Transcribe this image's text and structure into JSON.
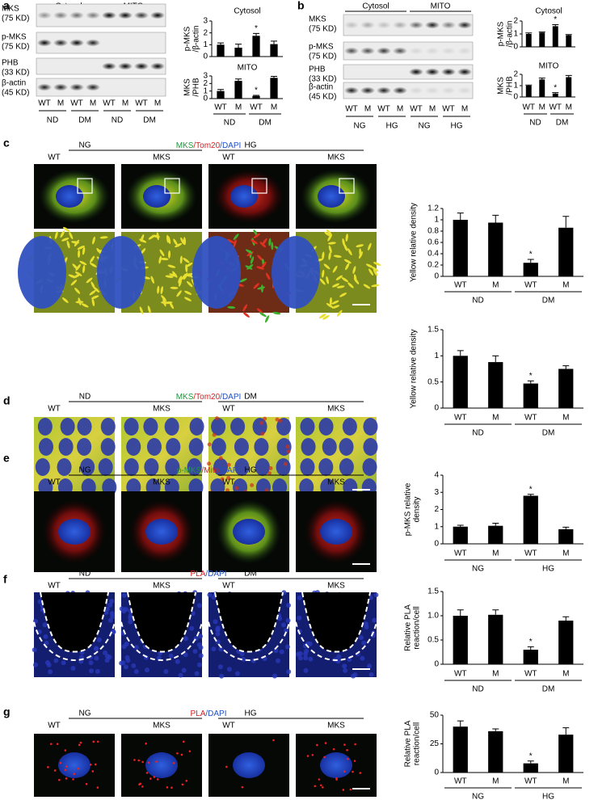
{
  "panels": {
    "a": {
      "label": "a",
      "fractions": [
        "Cytosol",
        "MITO"
      ],
      "rows": [
        [
          "MKS",
          "(75 KD)"
        ],
        [
          "p-MKS",
          "(75 KD)"
        ],
        [
          "PHB",
          "(33 KD)"
        ],
        [
          "β-actin",
          "(45 KD)"
        ]
      ],
      "lanes": [
        "WT",
        "M",
        "WT",
        "M",
        "WT",
        "M",
        "WT",
        "M"
      ],
      "groups": [
        "ND",
        "DM",
        "ND",
        "DM"
      ]
    },
    "b": {
      "label": "b",
      "fractions": [
        "Cytosol",
        "MITO"
      ],
      "rows": [
        [
          "MKS",
          "(75 KD)"
        ],
        [
          "p-MKS",
          "(75 KD)"
        ],
        [
          "PHB",
          "(33 KD)"
        ],
        [
          "β-actin",
          "(45 KD)"
        ]
      ],
      "lanes": [
        "WT",
        "M",
        "WT",
        "M",
        "WT",
        "M",
        "WT",
        "M"
      ],
      "groups": [
        "NG",
        "HG",
        "NG",
        "HG"
      ]
    },
    "c": {
      "label": "c",
      "conditions": [
        "NG",
        "HG"
      ],
      "stain": [
        {
          "text": "MKS",
          "color": "#1a9a3a"
        },
        {
          "text": "/Tom20",
          "color": "#d42020"
        },
        {
          "text": "/DAPI",
          "color": "#2050c0"
        }
      ],
      "columns": [
        "WT",
        "MKS",
        "WT",
        "MKS"
      ]
    },
    "d": {
      "label": "d",
      "conditions": [
        "ND",
        "DM"
      ],
      "stain": [
        {
          "text": "MKS",
          "color": "#1a9a3a"
        },
        {
          "text": "/Tom20",
          "color": "#d42020"
        },
        {
          "text": "/DAPI",
          "color": "#2050c0"
        }
      ],
      "columns": [
        "WT",
        "MKS",
        "WT",
        "MKS"
      ]
    },
    "e": {
      "label": "e",
      "conditions": [
        "NG",
        "HG"
      ],
      "stain": [
        {
          "text": "p-MKS",
          "color": "#1a9a3a"
        },
        {
          "text": "/Mito",
          "color": "#d42020"
        },
        {
          "text": "/DAPI",
          "color": "#2050c0"
        }
      ],
      "columns": [
        "WT",
        "MKS",
        "WT",
        "MKS"
      ]
    },
    "f": {
      "label": "f",
      "conditions": [
        "ND",
        "DM"
      ],
      "stain": [
        {
          "text": "PLA",
          "color": "#d42020"
        },
        {
          "text": "/DAPI",
          "color": "#2050c0"
        }
      ],
      "columns": [
        "WT",
        "MKS",
        "WT",
        "MKS"
      ]
    },
    "g": {
      "label": "g",
      "conditions": [
        "NG",
        "HG"
      ],
      "stain": [
        {
          "text": "PLA",
          "color": "#d42020"
        },
        {
          "text": "/DAPI",
          "color": "#2050c0"
        }
      ],
      "columns": [
        "WT",
        "MKS",
        "WT",
        "MKS"
      ]
    }
  },
  "chart_data": [
    {
      "type": "bar",
      "title": "Cytosol",
      "ylabel": [
        "p-MKS",
        "/β-actin"
      ],
      "values": [
        1.0,
        0.75,
        1.75,
        1.05
      ],
      "errors": [
        0.15,
        0.3,
        0.2,
        0.25
      ],
      "annotations": [
        {
          "text": "*",
          "category": 2
        }
      ],
      "ylim": [
        0,
        3
      ],
      "yticks": [
        0,
        1,
        2,
        3
      ],
      "color": "#000000"
    },
    {
      "type": "bar",
      "title": "MITO",
      "ylabel": [
        "MKS",
        "/PHB"
      ],
      "categories": [
        "WT",
        "M",
        "WT",
        "M"
      ],
      "groups": [
        "ND",
        "DM"
      ],
      "values": [
        1.0,
        2.35,
        0.35,
        2.75
      ],
      "errors": [
        0.2,
        0.25,
        0.08,
        0.2
      ],
      "annotations": [
        {
          "text": "*",
          "category": 2
        }
      ],
      "ylim": [
        0,
        3
      ],
      "yticks": [
        0,
        1,
        2,
        3
      ],
      "color": "#000000"
    },
    {
      "type": "bar",
      "title": "Cytosol",
      "ylabel": [
        "p-MKS",
        "/β-actin"
      ],
      "values": [
        1.0,
        1.1,
        1.6,
        0.9
      ],
      "errors": [
        0.08,
        0.05,
        0.12,
        0.05
      ],
      "annotations": [
        {
          "text": "*",
          "category": 2
        }
      ],
      "ylim": [
        0,
        2
      ],
      "yticks": [
        0,
        1,
        2
      ],
      "color": "#000000"
    },
    {
      "type": "bar",
      "title": "MITO",
      "ylabel": [
        "MKS",
        "/PHB"
      ],
      "categories": [
        "WT",
        "M",
        "WT",
        "M"
      ],
      "groups": [
        "ND",
        "DM"
      ],
      "values": [
        1.0,
        1.55,
        0.3,
        1.75
      ],
      "errors": [
        0.05,
        0.12,
        0.08,
        0.15
      ],
      "annotations": [
        {
          "text": "*",
          "category": 2
        }
      ],
      "ylim": [
        0,
        2
      ],
      "yticks": [
        0,
        1,
        2
      ],
      "color": "#000000"
    },
    {
      "type": "bar",
      "ylabel": [
        "Yellow relative density"
      ],
      "categories": [
        "WT",
        "M",
        "WT",
        "M"
      ],
      "groups": [
        "ND",
        "DM"
      ],
      "values": [
        1.0,
        0.95,
        0.24,
        0.86
      ],
      "errors": [
        0.12,
        0.13,
        0.06,
        0.2
      ],
      "annotations": [
        {
          "text": "*",
          "category": 2
        }
      ],
      "ylim": [
        0,
        1.2
      ],
      "yticks": [
        0,
        0.2,
        0.4,
        0.6,
        0.8,
        1,
        1.2
      ],
      "color": "#000000"
    },
    {
      "type": "bar",
      "ylabel": [
        "Yellow relative density"
      ],
      "categories": [
        "WT",
        "M",
        "WT",
        "M"
      ],
      "groups": [
        "ND",
        "DM"
      ],
      "values": [
        1.0,
        0.88,
        0.47,
        0.75
      ],
      "errors": [
        0.1,
        0.12,
        0.05,
        0.06
      ],
      "annotations": [
        {
          "text": "*",
          "category": 2
        }
      ],
      "ylim": [
        0,
        1.5
      ],
      "yticks": [
        0,
        0.5,
        1,
        1.5
      ],
      "color": "#000000"
    },
    {
      "type": "bar",
      "ylabel": [
        "p-MKS relative",
        "density"
      ],
      "categories": [
        "WT",
        "M",
        "WT",
        "M"
      ],
      "groups": [
        "NG",
        "HG"
      ],
      "values": [
        1.0,
        1.05,
        2.8,
        0.85
      ],
      "errors": [
        0.08,
        0.15,
        0.08,
        0.12
      ],
      "annotations": [
        {
          "text": "*",
          "category": 2
        }
      ],
      "ylim": [
        0,
        4
      ],
      "yticks": [
        0,
        1,
        2,
        3,
        4
      ],
      "color": "#000000"
    },
    {
      "type": "bar",
      "ylabel": [
        "Relative PLA",
        "reaction/cell"
      ],
      "categories": [
        "WT",
        "M",
        "WT",
        "M"
      ],
      "groups": [
        "ND",
        "DM"
      ],
      "values": [
        1.0,
        1.02,
        0.3,
        0.9
      ],
      "errors": [
        0.12,
        0.1,
        0.06,
        0.08
      ],
      "annotations": [
        {
          "text": "*",
          "category": 2
        }
      ],
      "ylim": [
        0,
        1.5
      ],
      "yticks": [
        0,
        0.5,
        {
          "value": 1,
          "label": "1.0"
        },
        1.5
      ],
      "color": "#000000"
    },
    {
      "type": "bar",
      "ylabel": [
        "Relative PLA",
        "reaction/cell"
      ],
      "categories": [
        "WT",
        "M",
        "WT",
        "M"
      ],
      "groups": [
        "NG",
        "HG"
      ],
      "values": [
        40,
        36,
        8,
        33
      ],
      "errors": [
        5,
        2,
        2,
        6
      ],
      "annotations": [
        {
          "text": "*",
          "category": 2
        }
      ],
      "ylim": [
        0,
        50
      ],
      "yticks": [
        0,
        25,
        50
      ],
      "color": "#000000"
    }
  ]
}
